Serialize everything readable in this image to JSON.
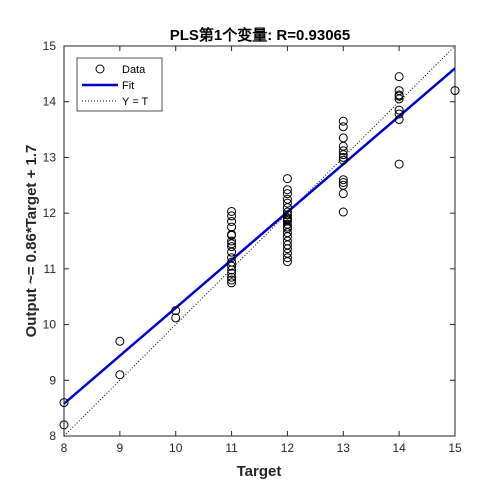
{
  "chart_data": {
    "type": "scatter",
    "title": "PLS第1个变量: R=0.93065",
    "xlabel": "Target",
    "ylabel": "Output ~= 0.86*Target + 1.7",
    "xlim": [
      8,
      15
    ],
    "ylim": [
      8,
      15
    ],
    "xticks": [
      "8",
      "9",
      "10",
      "11",
      "12",
      "13",
      "14",
      "15"
    ],
    "yticks": [
      "8",
      "9",
      "10",
      "11",
      "12",
      "13",
      "14",
      "15"
    ],
    "grid": false,
    "legend": {
      "position": "top-left",
      "entries": [
        {
          "label": "Data",
          "style": "circle-marker"
        },
        {
          "label": "Fit",
          "style": "solid-line"
        },
        {
          "label": "Y = T",
          "style": "dotted-line"
        }
      ]
    },
    "colors": {
      "data": "#000000",
      "fit": "#0000cc",
      "identity": "#000000"
    },
    "fit": {
      "slope": 0.86,
      "intercept": 1.7
    },
    "series": [
      {
        "name": "Data",
        "x": [
          8,
          8,
          9,
          9,
          10,
          10,
          11,
          11,
          11,
          11,
          11,
          11,
          11,
          11,
          11,
          11,
          11,
          11,
          11,
          11,
          11,
          11,
          11,
          11,
          12,
          12,
          12,
          12,
          12,
          12,
          12,
          12,
          12,
          12,
          12,
          12,
          12,
          12,
          12,
          12,
          12,
          12,
          12,
          12,
          12,
          12,
          12,
          12,
          13,
          13,
          13,
          13,
          13,
          13,
          13,
          13,
          13,
          13,
          13,
          13,
          13,
          14,
          14,
          14,
          14,
          14,
          14,
          14,
          14,
          14,
          15
        ],
        "y": [
          8.6,
          8.2,
          9.7,
          9.1,
          10.25,
          10.12,
          12.03,
          11.95,
          11.85,
          11.75,
          11.62,
          11.5,
          11.4,
          11.3,
          11.2,
          11.12,
          11.05,
          10.98,
          10.92,
          10.85,
          10.8,
          10.75,
          11.6,
          11.45,
          12.62,
          12.42,
          12.35,
          12.25,
          12.18,
          12.1,
          12.02,
          11.97,
          11.92,
          11.86,
          11.8,
          11.72,
          11.65,
          11.58,
          11.5,
          11.43,
          11.36,
          11.28,
          11.2,
          11.13,
          11.97,
          11.9,
          11.88,
          11.75,
          13.65,
          13.55,
          13.35,
          13.2,
          13.12,
          13.05,
          12.95,
          12.6,
          12.55,
          12.5,
          12.35,
          12.02,
          13.0,
          14.45,
          14.2,
          14.12,
          14.05,
          13.85,
          13.78,
          13.68,
          12.88,
          14.1,
          14.2
        ]
      }
    ]
  }
}
